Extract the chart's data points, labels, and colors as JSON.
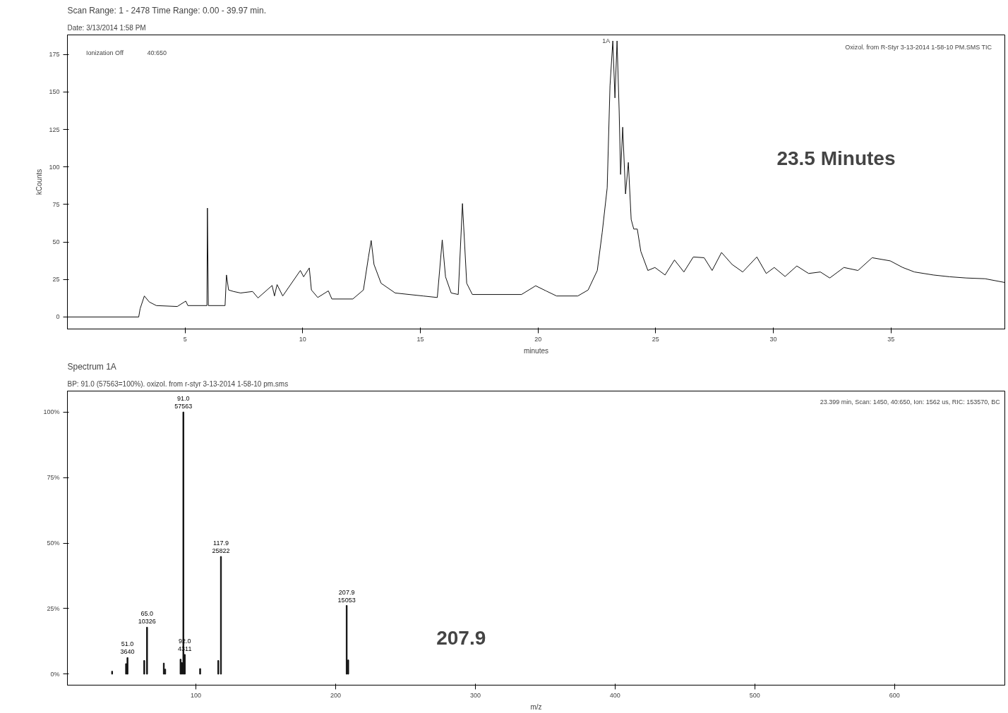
{
  "chart_data": [
    {
      "type": "line",
      "title": "Scan Range: 1 - 2478 Time Range: 0.00 - 39.97 min.",
      "subtitle": "Date: 3/13/2014 1:58 PM",
      "xlabel": "minutes",
      "ylabel": "kCounts",
      "x": [
        0.05,
        3.03,
        3.09,
        3.27,
        3.48,
        3.78,
        4.67,
        5.03,
        5.12,
        5.93,
        5.95,
        5.99,
        6.7,
        6.76,
        6.85,
        7.06,
        7.36,
        7.87,
        8.1,
        8.7,
        8.8,
        8.91,
        9.15,
        9.9,
        10.04,
        10.28,
        10.37,
        10.64,
        11.09,
        11.24,
        12.13,
        12.58,
        12.79,
        12.91,
        13.03,
        13.33,
        13.93,
        15.12,
        15.72,
        15.93,
        16.07,
        16.31,
        16.61,
        16.79,
        16.97,
        17.21,
        19.3,
        19.9,
        20.34,
        20.79,
        21.69,
        22.13,
        22.52,
        22.73,
        22.94,
        23.06,
        23.18,
        23.27,
        23.36,
        23.45,
        23.51,
        23.6,
        23.72,
        23.84,
        23.96,
        24.07,
        24.22,
        24.37,
        24.67,
        24.97,
        25.4,
        25.8,
        26.2,
        26.6,
        27.06,
        27.4,
        27.8,
        28.25,
        28.7,
        29.3,
        29.7,
        30.04,
        30.5,
        31.0,
        31.5,
        32.0,
        32.4,
        33.0,
        33.6,
        34.2,
        34.97,
        35.5,
        36.0,
        36.8,
        37.5,
        38.2,
        39.0,
        39.84
      ],
      "series": [
        {
          "color": "#111111",
          "values": [
            0,
            0,
            5.5,
            14,
            10,
            7.6,
            7,
            10.6,
            7.6,
            7.6,
            72.6,
            7.6,
            7.6,
            28,
            18,
            17,
            16,
            17,
            12.7,
            21,
            14,
            21.6,
            14,
            31,
            26.8,
            32.7,
            18,
            13,
            17.4,
            12,
            12,
            18,
            39.5,
            51,
            35,
            22.5,
            16,
            14,
            13,
            51.4,
            26.8,
            16,
            15,
            75.6,
            22.5,
            15,
            15,
            20.8,
            17.4,
            14,
            14,
            18,
            31,
            56.5,
            86,
            154,
            184,
            146,
            184,
            137,
            95,
            126.5,
            82,
            103,
            65,
            58.6,
            58.6,
            43.7,
            31,
            33,
            28,
            38,
            30,
            40,
            39.5,
            31,
            43,
            35,
            30,
            40,
            29,
            33,
            27,
            34,
            29,
            30,
            26,
            33,
            31,
            39.5,
            37.4,
            33,
            30,
            28,
            26.8,
            26,
            25.5,
            23
          ]
        }
      ],
      "xlim": [
        0,
        39.84
      ],
      "xticks": [
        5,
        10,
        15,
        20,
        25,
        30,
        35
      ],
      "ylim": [
        -8,
        188
      ],
      "yticks": [
        0,
        25,
        50,
        75,
        100,
        125,
        150,
        175
      ],
      "grid": false,
      "line_style": "solid",
      "marker": "none",
      "annotations": [
        "Ionization Off",
        "40:650",
        "Oxizol. from R-Styr  3-13-2014  1-58-10 PM.SMS TIC",
        "23.5 Minutes",
        {
          "text": "1A",
          "x": 23.3,
          "y": 184
        }
      ]
    },
    {
      "type": "bar",
      "title": "Spectrum 1A",
      "subtitle": "BP: 91.0 (57563=100%). oxizol. from r-styr  3-13-2014  1-58-10 pm.sms",
      "xlabel": "m/z",
      "x": [
        40,
        50,
        51.0,
        63,
        65.0,
        77,
        78,
        89,
        90,
        91.0,
        92.0,
        103,
        116,
        117.9,
        207.9,
        209
      ],
      "series": [
        {
          "color": "#111111",
          "values": [
            1.1,
            4,
            6.3,
            5.2,
            17.9,
            4.2,
            1.9,
            5.7,
            4.4,
            100,
            7.5,
            2.1,
            5.2,
            44.9,
            26.2,
            5.4
          ]
        }
      ],
      "value_labels": [
        null,
        null,
        "51.0\n3640",
        null,
        "65.0\n10326",
        null,
        null,
        null,
        null,
        "91.0\n57563",
        "92.0\n4311",
        null,
        null,
        "117.9\n25822",
        "207.9\n15053",
        null
      ],
      "xlim": [
        8,
        679
      ],
      "xticks": [
        100,
        200,
        300,
        400,
        500,
        600
      ],
      "ylim": [
        -4.2,
        108
      ],
      "yticks": [
        {
          "value": 0,
          "label": "0%"
        },
        {
          "value": 25,
          "label": "25%"
        },
        {
          "value": 50,
          "label": "50%"
        },
        {
          "value": 75,
          "label": "75%"
        },
        {
          "value": 100,
          "label": "100%"
        }
      ],
      "grid": false,
      "annotations": [
        "23.399 min, Scan: 1450, 40:650, Ion: 1562 us, RIC: 153570, BC",
        "207.9"
      ]
    }
  ]
}
